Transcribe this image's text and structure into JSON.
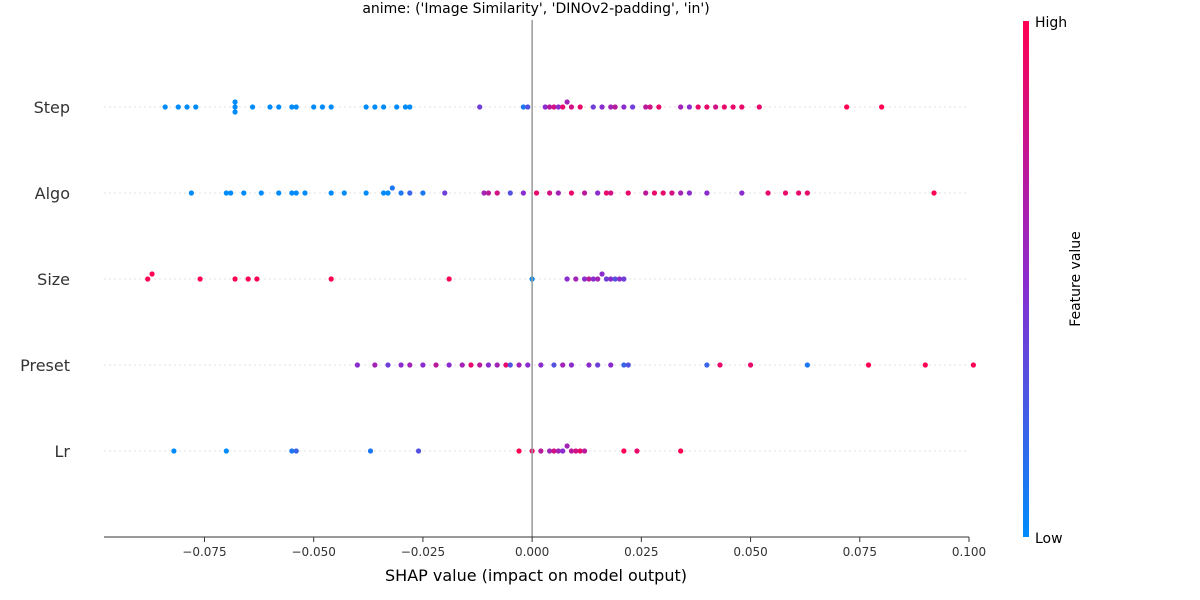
{
  "chart_data": {
    "type": "scatter",
    "subtype": "shap-beeswarm",
    "title": "anime: ('Image Similarity', 'DINOv2-padding', 'in')",
    "xlabel": "SHAP value (impact on model output)",
    "xlim": [
      -0.098,
      0.1
    ],
    "x_ticks": [
      "−0.075",
      "−0.050",
      "−0.025",
      "0.000",
      "0.025",
      "0.050",
      "0.075",
      "0.100"
    ],
    "x_tick_values": [
      -0.075,
      -0.05,
      -0.025,
      0.0,
      0.025,
      0.05,
      0.075,
      0.1
    ],
    "zero_line": 0.0,
    "grid": false,
    "colorbar": {
      "label": "Feature value",
      "high_label": "High",
      "low_label": "Low",
      "low_color": "#008bfb",
      "mid_color": "#8b2cce",
      "high_color": "#ff0052"
    },
    "features": [
      "Step",
      "Algo",
      "Size",
      "Preset",
      "Lr"
    ],
    "series": [
      {
        "name": "Step",
        "points": [
          {
            "x": -0.084,
            "c": 0
          },
          {
            "x": -0.081,
            "c": 0
          },
          {
            "x": -0.079,
            "c": 0
          },
          {
            "x": -0.077,
            "c": 0
          },
          {
            "x": -0.068,
            "c": 0
          },
          {
            "x": -0.068,
            "c": 0
          },
          {
            "x": -0.068,
            "c": 0
          },
          {
            "x": -0.064,
            "c": 0
          },
          {
            "x": -0.06,
            "c": 0
          },
          {
            "x": -0.058,
            "c": 0
          },
          {
            "x": -0.055,
            "c": 0
          },
          {
            "x": -0.054,
            "c": 0
          },
          {
            "x": -0.05,
            "c": 0
          },
          {
            "x": -0.048,
            "c": 0
          },
          {
            "x": -0.046,
            "c": 0
          },
          {
            "x": -0.038,
            "c": 0
          },
          {
            "x": -0.036,
            "c": 0
          },
          {
            "x": -0.034,
            "c": 0
          },
          {
            "x": -0.031,
            "c": 0
          },
          {
            "x": -0.029,
            "c": 0
          },
          {
            "x": -0.028,
            "c": 0
          },
          {
            "x": -0.012,
            "c": 0.4
          },
          {
            "x": -0.002,
            "c": 0.1
          },
          {
            "x": -0.001,
            "c": 0.3
          },
          {
            "x": 0.003,
            "c": 0.5
          },
          {
            "x": 0.004,
            "c": 0.7
          },
          {
            "x": 0.005,
            "c": 0.8
          },
          {
            "x": 0.006,
            "c": 0.5
          },
          {
            "x": 0.007,
            "c": 0.9
          },
          {
            "x": 0.008,
            "c": 0.6
          },
          {
            "x": 0.009,
            "c": 0.8
          },
          {
            "x": 0.011,
            "c": 0.9
          },
          {
            "x": 0.014,
            "c": 0.4
          },
          {
            "x": 0.016,
            "c": 0.5
          },
          {
            "x": 0.018,
            "c": 0.6
          },
          {
            "x": 0.019,
            "c": 0.7
          },
          {
            "x": 0.021,
            "c": 0.5
          },
          {
            "x": 0.023,
            "c": 0.4
          },
          {
            "x": 0.026,
            "c": 0.7
          },
          {
            "x": 0.027,
            "c": 0.8
          },
          {
            "x": 0.029,
            "c": 0.9
          },
          {
            "x": 0.034,
            "c": 0.6
          },
          {
            "x": 0.036,
            "c": 0.5
          },
          {
            "x": 0.038,
            "c": 0.9
          },
          {
            "x": 0.04,
            "c": 0.9
          },
          {
            "x": 0.042,
            "c": 0.8
          },
          {
            "x": 0.044,
            "c": 0.9
          },
          {
            "x": 0.046,
            "c": 0.9
          },
          {
            "x": 0.048,
            "c": 0.9
          },
          {
            "x": 0.052,
            "c": 0.9
          },
          {
            "x": 0.072,
            "c": 1.0
          },
          {
            "x": 0.08,
            "c": 1.0
          }
        ]
      },
      {
        "name": "Algo",
        "points": [
          {
            "x": -0.078,
            "c": 0
          },
          {
            "x": -0.07,
            "c": 0
          },
          {
            "x": -0.069,
            "c": 0
          },
          {
            "x": -0.066,
            "c": 0
          },
          {
            "x": -0.062,
            "c": 0
          },
          {
            "x": -0.058,
            "c": 0
          },
          {
            "x": -0.055,
            "c": 0
          },
          {
            "x": -0.054,
            "c": 0
          },
          {
            "x": -0.052,
            "c": 0
          },
          {
            "x": -0.046,
            "c": 0
          },
          {
            "x": -0.043,
            "c": 0
          },
          {
            "x": -0.038,
            "c": 0
          },
          {
            "x": -0.034,
            "c": 0
          },
          {
            "x": -0.033,
            "c": 0
          },
          {
            "x": -0.032,
            "c": 0.1
          },
          {
            "x": -0.03,
            "c": 0.1
          },
          {
            "x": -0.028,
            "c": 0.2
          },
          {
            "x": -0.025,
            "c": 0.1
          },
          {
            "x": -0.02,
            "c": 0.4
          },
          {
            "x": -0.011,
            "c": 0.6
          },
          {
            "x": -0.01,
            "c": 0.7
          },
          {
            "x": -0.008,
            "c": 0.8
          },
          {
            "x": -0.005,
            "c": 0.3
          },
          {
            "x": -0.002,
            "c": 0.5
          },
          {
            "x": 0.001,
            "c": 0.9
          },
          {
            "x": 0.004,
            "c": 0.8
          },
          {
            "x": 0.006,
            "c": 0.6
          },
          {
            "x": 0.009,
            "c": 0.9
          },
          {
            "x": 0.012,
            "c": 0.7
          },
          {
            "x": 0.015,
            "c": 0.5
          },
          {
            "x": 0.017,
            "c": 0.9
          },
          {
            "x": 0.018,
            "c": 0.8
          },
          {
            "x": 0.022,
            "c": 0.9
          },
          {
            "x": 0.026,
            "c": 0.7
          },
          {
            "x": 0.028,
            "c": 0.9
          },
          {
            "x": 0.03,
            "c": 0.9
          },
          {
            "x": 0.032,
            "c": 0.8
          },
          {
            "x": 0.034,
            "c": 0.6
          },
          {
            "x": 0.036,
            "c": 0.5
          },
          {
            "x": 0.04,
            "c": 0.5
          },
          {
            "x": 0.048,
            "c": 0.5
          },
          {
            "x": 0.054,
            "c": 0.9
          },
          {
            "x": 0.058,
            "c": 0.9
          },
          {
            "x": 0.061,
            "c": 0.9
          },
          {
            "x": 0.063,
            "c": 0.9
          },
          {
            "x": 0.092,
            "c": 1.0
          }
        ]
      },
      {
        "name": "Size",
        "points": [
          {
            "x": -0.088,
            "c": 1.0
          },
          {
            "x": -0.087,
            "c": 1.0
          },
          {
            "x": -0.076,
            "c": 1.0
          },
          {
            "x": -0.068,
            "c": 1.0
          },
          {
            "x": -0.065,
            "c": 1.0
          },
          {
            "x": -0.063,
            "c": 1.0
          },
          {
            "x": -0.046,
            "c": 1.0
          },
          {
            "x": -0.019,
            "c": 1.0
          },
          {
            "x": 0.0,
            "c": 0.0
          },
          {
            "x": 0.008,
            "c": 0.5
          },
          {
            "x": 0.01,
            "c": 0.6
          },
          {
            "x": 0.012,
            "c": 0.5
          },
          {
            "x": 0.013,
            "c": 0.7
          },
          {
            "x": 0.014,
            "c": 0.5
          },
          {
            "x": 0.015,
            "c": 0.6
          },
          {
            "x": 0.016,
            "c": 0.5
          },
          {
            "x": 0.017,
            "c": 0.4
          },
          {
            "x": 0.018,
            "c": 0.5
          },
          {
            "x": 0.019,
            "c": 0.3
          },
          {
            "x": 0.02,
            "c": 0.5
          },
          {
            "x": 0.021,
            "c": 0.4
          }
        ]
      },
      {
        "name": "Preset",
        "points": [
          {
            "x": -0.04,
            "c": 0.5
          },
          {
            "x": -0.036,
            "c": 0.6
          },
          {
            "x": -0.033,
            "c": 0.4
          },
          {
            "x": -0.03,
            "c": 0.5
          },
          {
            "x": -0.028,
            "c": 0.6
          },
          {
            "x": -0.025,
            "c": 0.5
          },
          {
            "x": -0.022,
            "c": 0.7
          },
          {
            "x": -0.019,
            "c": 0.5
          },
          {
            "x": -0.016,
            "c": 0.6
          },
          {
            "x": -0.014,
            "c": 0.9
          },
          {
            "x": -0.012,
            "c": 0.7
          },
          {
            "x": -0.01,
            "c": 0.5
          },
          {
            "x": -0.008,
            "c": 0.6
          },
          {
            "x": -0.006,
            "c": 0.9
          },
          {
            "x": -0.005,
            "c": 0.3
          },
          {
            "x": -0.003,
            "c": 0.6
          },
          {
            "x": -0.001,
            "c": 0.5
          },
          {
            "x": 0.002,
            "c": 0.5
          },
          {
            "x": 0.005,
            "c": 0.3
          },
          {
            "x": 0.007,
            "c": 0.6
          },
          {
            "x": 0.009,
            "c": 0.5
          },
          {
            "x": 0.013,
            "c": 0.5
          },
          {
            "x": 0.015,
            "c": 0.4
          },
          {
            "x": 0.018,
            "c": 0.5
          },
          {
            "x": 0.021,
            "c": 0.2
          },
          {
            "x": 0.022,
            "c": 0.3
          },
          {
            "x": 0.04,
            "c": 0.2
          },
          {
            "x": 0.043,
            "c": 0.9
          },
          {
            "x": 0.05,
            "c": 0.9
          },
          {
            "x": 0.063,
            "c": 0.1
          },
          {
            "x": 0.077,
            "c": 1.0
          },
          {
            "x": 0.09,
            "c": 1.0
          },
          {
            "x": 0.101,
            "c": 1.0
          }
        ]
      },
      {
        "name": "Lr",
        "points": [
          {
            "x": -0.082,
            "c": 0.0
          },
          {
            "x": -0.07,
            "c": 0.0
          },
          {
            "x": -0.055,
            "c": 0.1
          },
          {
            "x": -0.054,
            "c": 0.2
          },
          {
            "x": -0.037,
            "c": 0.1
          },
          {
            "x": -0.026,
            "c": 0.3
          },
          {
            "x": -0.003,
            "c": 1.0
          },
          {
            "x": 0.0,
            "c": 0.9
          },
          {
            "x": 0.002,
            "c": 0.7
          },
          {
            "x": 0.004,
            "c": 0.6
          },
          {
            "x": 0.005,
            "c": 0.8
          },
          {
            "x": 0.006,
            "c": 0.6
          },
          {
            "x": 0.007,
            "c": 0.5
          },
          {
            "x": 0.008,
            "c": 0.6
          },
          {
            "x": 0.009,
            "c": 0.7
          },
          {
            "x": 0.01,
            "c": 0.8
          },
          {
            "x": 0.011,
            "c": 0.9
          },
          {
            "x": 0.012,
            "c": 0.7
          },
          {
            "x": 0.021,
            "c": 1.0
          },
          {
            "x": 0.024,
            "c": 0.9
          },
          {
            "x": 0.034,
            "c": 1.0
          }
        ]
      }
    ]
  }
}
